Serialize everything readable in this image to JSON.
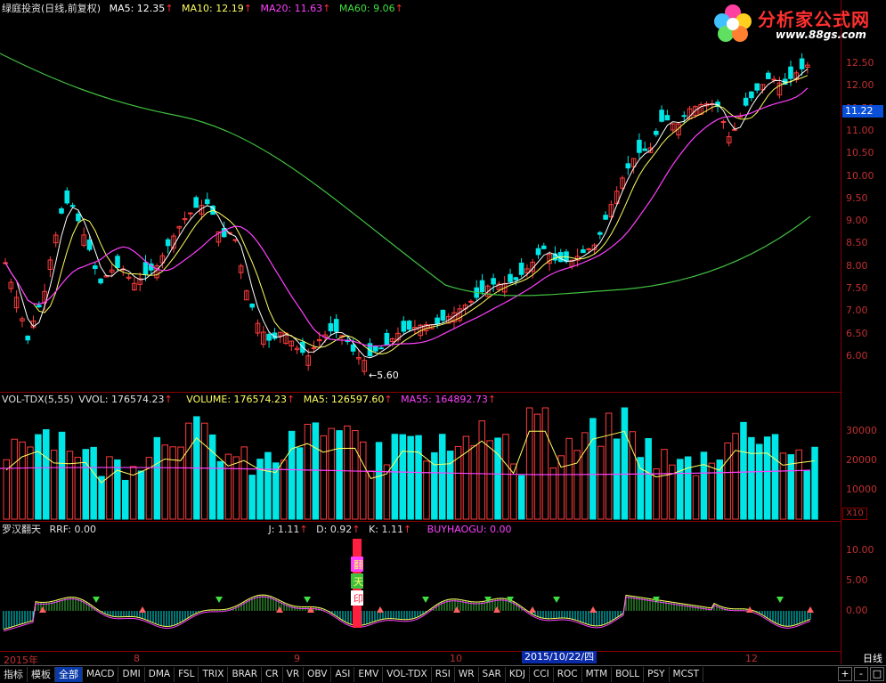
{
  "main_legend": {
    "title": "绿庭投资(日线,前复权)",
    "ma5": "MA5: 12.35",
    "ma10": "MA10: 12.19",
    "ma20": "MA20: 11.63",
    "ma60": "MA60: 9.06",
    "arrow": "↑"
  },
  "price_axis": [
    "12.50",
    "12.00",
    "11.50",
    "11.00",
    "10.50",
    "10.00",
    "9.50",
    "9.00",
    "8.50",
    "8.00",
    "7.50",
    "7.00",
    "6.50",
    "6.00"
  ],
  "current_price": "11.22",
  "low_marker": "5.60",
  "vol_legend": {
    "title": "VOL-TDX(5,55)",
    "vvol": "VVOL: 176574.23",
    "volume": "VOLUME: 176574.23",
    "ma5": "MA5: 126597.60",
    "ma55": "MA55: 164892.73",
    "arrow": "↑"
  },
  "vol_axis": [
    "30000",
    "20000",
    "10000"
  ],
  "vol_multiplier": "X10",
  "ind_legend": {
    "title": "罗汉翻天",
    "rrf": "RRF: 0.00",
    "j": "J: 1.11",
    "d": "D: 0.92",
    "k": "K: 1.11",
    "buy": "BUYHAOGU: 0.00",
    "arrow": "↑"
  },
  "ind_axis": [
    "10.00",
    "5.00",
    "0.00"
  ],
  "ind_marks": [
    "翻",
    "天",
    "印"
  ],
  "x_axis": {
    "year": "2015年",
    "m8a": "8",
    "m9": "9",
    "m10": "10",
    "m12": "12"
  },
  "cursor_date": "2015/10/22/四",
  "period": "日线",
  "tabs": [
    "指标",
    "模板",
    "全部",
    "MACD",
    "DMI",
    "DMA",
    "FSL",
    "TRIX",
    "BRAR",
    "CR",
    "VR",
    "OBV",
    "ASI",
    "EMV",
    "VOL-TDX",
    "RSI",
    "WR",
    "SAR",
    "KDJ",
    "CCI",
    "ROC",
    "MTM",
    "BOLL",
    "PSY",
    "MCST"
  ],
  "controls": [
    "+",
    "-",
    "□"
  ],
  "logo": {
    "title": "分析家公式网",
    "url": "www.88gs.com"
  },
  "colors": {
    "up": "#ff3c3c",
    "down": "#00e6e6",
    "ma5": "#ffffff",
    "ma10": "#ffff60",
    "ma20": "#ff40ff",
    "ma60": "#40c040"
  }
}
